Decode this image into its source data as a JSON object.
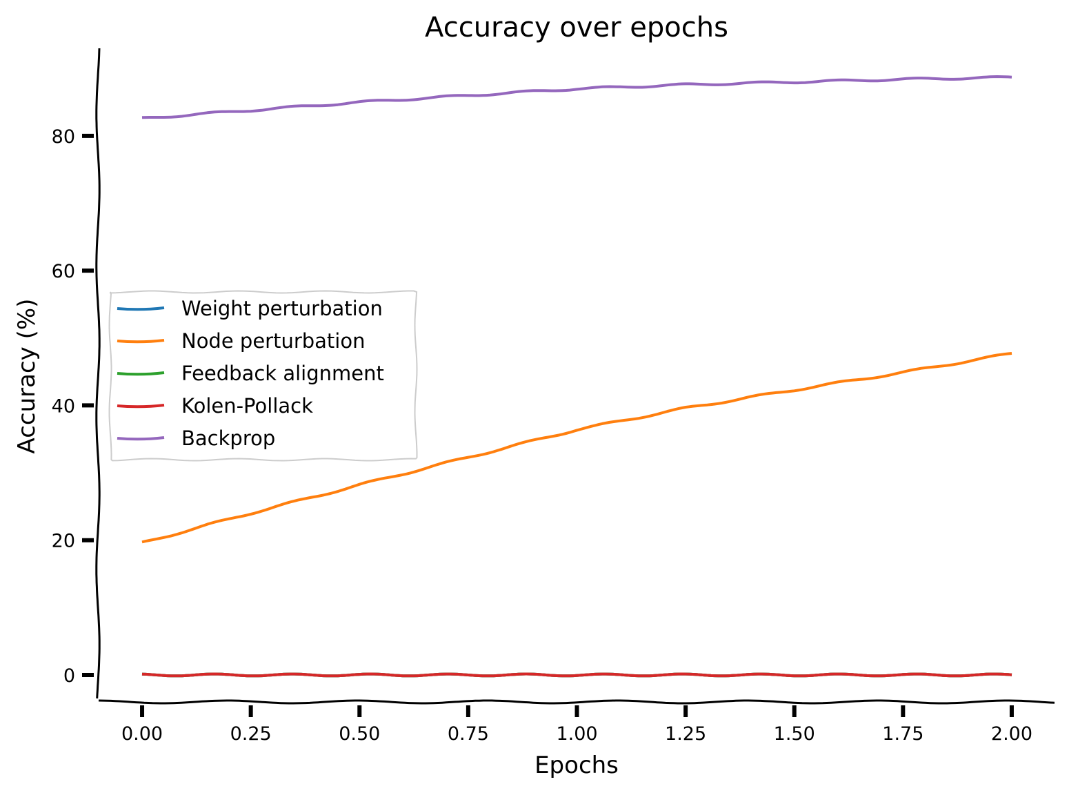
{
  "chart_data": {
    "type": "line",
    "title": "Accuracy over epochs",
    "xlabel": "Epochs",
    "ylabel": "Accuracy (%)",
    "xlim": [
      -0.1,
      2.1
    ],
    "ylim": [
      -4,
      93
    ],
    "xticks": [
      0.0,
      0.25,
      0.5,
      0.75,
      1.0,
      1.25,
      1.5,
      1.75,
      2.0
    ],
    "xtick_labels": [
      "0.00",
      "0.25",
      "0.50",
      "0.75",
      "1.00",
      "1.25",
      "1.50",
      "1.75",
      "2.00"
    ],
    "yticks": [
      0,
      20,
      40,
      60,
      80
    ],
    "ytick_labels": [
      "0",
      "20",
      "40",
      "60",
      "80"
    ],
    "legend_position": "center-left",
    "grid": false,
    "x": [
      0.0,
      0.25,
      0.5,
      0.75,
      1.0,
      1.25,
      1.5,
      1.75,
      2.0
    ],
    "series": [
      {
        "name": "Weight perturbation",
        "color": "#1f77b4",
        "values": [
          0,
          0,
          0,
          0,
          0,
          0,
          0,
          0,
          0
        ]
      },
      {
        "name": "Node perturbation",
        "color": "#ff7f0e",
        "values": [
          19.6,
          24.0,
          28.2,
          32.3,
          36.4,
          39.6,
          42.3,
          44.9,
          47.7
        ]
      },
      {
        "name": "Feedback alignment",
        "color": "#2ca02c",
        "values": [
          0,
          0,
          0,
          0,
          0,
          0,
          0,
          0,
          0
        ]
      },
      {
        "name": "Kolen-Pollack",
        "color": "#d62728",
        "values": [
          0,
          0,
          0,
          0,
          0,
          0,
          0,
          0,
          0
        ]
      },
      {
        "name": "Backprop",
        "color": "#9467bd",
        "values": [
          82.6,
          83.8,
          85.0,
          86.0,
          87.0,
          87.6,
          88.0,
          88.4,
          88.7
        ]
      }
    ]
  }
}
